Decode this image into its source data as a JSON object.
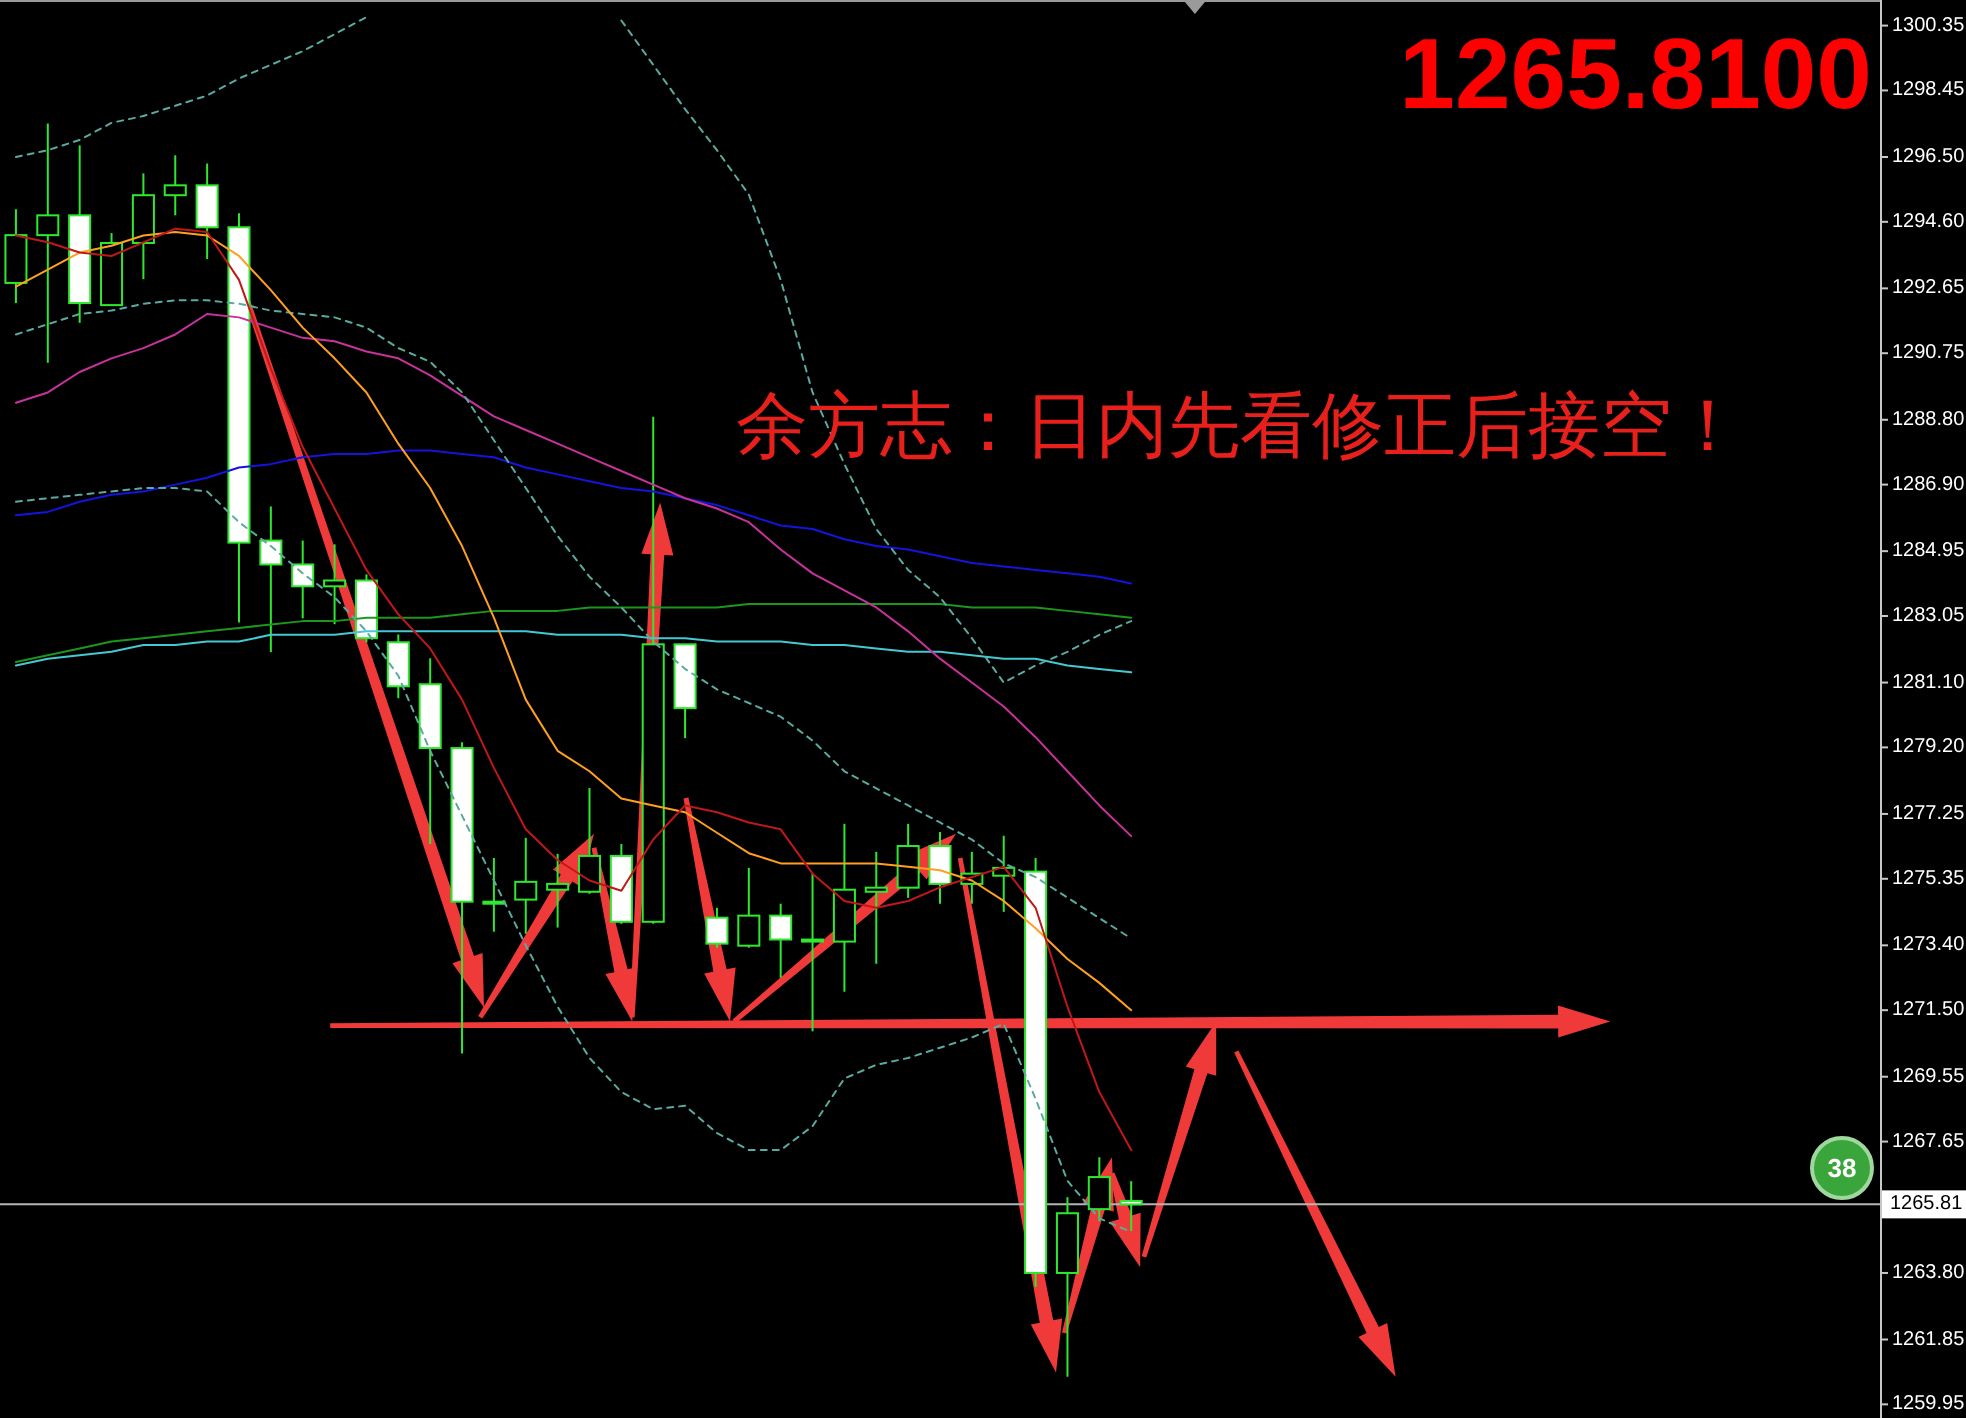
{
  "chart_data": {
    "type": "candlestick",
    "categories": [
      null,
      null,
      null,
      null,
      null,
      null,
      null,
      null,
      null,
      null,
      null,
      null,
      null,
      null,
      null,
      null,
      null,
      null,
      null,
      null,
      null,
      null,
      null,
      null,
      null,
      null,
      null,
      null,
      null,
      null,
      null,
      null,
      null,
      null,
      null,
      null,
      null,
      null,
      null,
      null,
      null,
      null,
      null,
      null,
      null,
      null,
      null,
      null,
      null,
      null,
      null,
      null,
      null,
      null,
      null,
      null,
      null,
      null,
      null
    ],
    "ohlc": [
      [
        1292.81,
        1294.97,
        1292.22,
        1294.21
      ],
      [
        1294.21,
        1297.48,
        1290.47,
        1294.79
      ],
      [
        1294.79,
        1296.84,
        1291.64,
        1292.22
      ],
      [
        1292.16,
        1294.27,
        1292.16,
        1293.98
      ],
      [
        1293.98,
        1296.02,
        1292.92,
        1295.38
      ],
      [
        1295.38,
        1296.55,
        1294.79,
        1295.67
      ],
      [
        1295.67,
        1296.31,
        1293.51,
        1294.44
      ],
      [
        1294.44,
        1294.85,
        1282.86,
        1285.2
      ],
      [
        1285.26,
        1286.26,
        1281.99,
        1284.56
      ],
      [
        1284.56,
        1285.26,
        1282.98,
        1283.92
      ],
      [
        1283.92,
        1285.15,
        1282.81,
        1284.09
      ],
      [
        1284.09,
        1284.27,
        1282.28,
        1282.4
      ],
      [
        1282.28,
        1282.51,
        1280.64,
        1280.99
      ],
      [
        1281.05,
        1281.81,
        1276.37,
        1279.18
      ],
      [
        1279.18,
        1279.35,
        1270.23,
        1274.68
      ],
      [
        1274.68,
        1275.96,
        1273.8,
        1274.62
      ],
      [
        1274.74,
        1276.55,
        1273.74,
        1275.26
      ],
      [
        1275.03,
        1276.08,
        1273.92,
        1275.2
      ],
      [
        1274.97,
        1278.01,
        1274.91,
        1276.02
      ],
      [
        1276.02,
        1276.37,
        1274.03,
        1274.09
      ],
      [
        1274.09,
        1288.89,
        1274.03,
        1282.22
      ],
      [
        1282.22,
        1282.22,
        1279.47,
        1280.35
      ],
      [
        1274.21,
        1274.5,
        1273.33,
        1273.45
      ],
      [
        1273.39,
        1275.67,
        1273.33,
        1274.27
      ],
      [
        1274.27,
        1274.62,
        1272.45,
        1273.57
      ],
      [
        1273.57,
        1275.5,
        1270.88,
        1273.51
      ],
      [
        1273.51,
        1276.96,
        1272.04,
        1275.03
      ],
      [
        1274.97,
        1276.14,
        1272.86,
        1275.09
      ],
      [
        1275.09,
        1276.96,
        1274.79,
        1276.31
      ],
      [
        1276.31,
        1276.72,
        1274.62,
        1275.2
      ],
      [
        1275.2,
        1276.14,
        1274.62,
        1275.5
      ],
      [
        1275.44,
        1276.61,
        1274.38,
        1275.67
      ],
      [
        1275.56,
        1275.96,
        1263.39,
        1263.8
      ],
      [
        1263.8,
        1266.02,
        1260.76,
        1265.55
      ],
      [
        1265.67,
        1267.19,
        1265.32,
        1266.61
      ],
      [
        1265.91,
        1266.49,
        1265.03,
        1265.81
      ],
      null,
      null,
      null,
      null,
      null,
      null,
      null,
      null,
      null,
      null,
      null,
      null,
      null,
      null,
      null,
      null,
      null,
      null,
      null,
      null,
      null,
      null,
      null
    ],
    "color": "#2ee82e",
    "colors": [
      "#000000",
      "#000000",
      "#ffffff",
      "#000000",
      "#000000",
      "#000000",
      "#ffffff",
      "#ffffff",
      "#ffffff",
      "#ffffff",
      "#000000",
      "#ffffff",
      "#ffffff",
      "#ffffff",
      "#ffffff",
      "#ffffff",
      "#000000",
      "#000000",
      "#000000",
      "#ffffff",
      "#000000",
      "#ffffff",
      "#ffffff",
      "#000000",
      "#ffffff",
      "#ffffff",
      "#000000",
      "#000000",
      "#000000",
      "#ffffff",
      "#000000",
      "#000000",
      "#ffffff",
      "#000000",
      "#000000",
      "#ffffff",
      null,
      null,
      null,
      null,
      null,
      null,
      null,
      null,
      null,
      null,
      null,
      null,
      null,
      null,
      null,
      null,
      null,
      null,
      null,
      null,
      null,
      null,
      null
    ],
    "series": [
      {
        "type": "line",
        "color": "#46c8d2",
        "values": [
          1281.6,
          1281.8,
          1281.9,
          1282.0,
          1282.2,
          1282.2,
          1282.3,
          1282.3,
          1282.5,
          1282.5,
          1282.5,
          1282.6,
          1282.6,
          1282.6,
          1282.6,
          1282.6,
          1282.6,
          1282.5,
          1282.5,
          1282.5,
          1282.4,
          1282.4,
          1282.3,
          1282.3,
          1282.3,
          1282.2,
          1282.2,
          1282.1,
          1282.0,
          1282.0,
          1281.9,
          1281.8,
          1281.8,
          1281.6,
          1281.5,
          1281.4,
          null,
          null,
          null,
          null,
          null,
          null,
          null,
          null,
          null,
          null,
          null,
          null,
          null,
          null,
          null,
          null,
          null,
          null,
          null,
          null,
          null,
          null,
          null
        ]
      },
      {
        "type": "line",
        "color": "#1e961e",
        "values": [
          1281.7,
          1281.9,
          1282.1,
          1282.3,
          1282.4,
          1282.5,
          1282.6,
          1282.7,
          1282.8,
          1282.9,
          1282.9,
          1283.0,
          1283.0,
          1283.0,
          1283.1,
          1283.2,
          1283.2,
          1283.2,
          1283.3,
          1283.3,
          1283.3,
          1283.3,
          1283.3,
          1283.4,
          1283.4,
          1283.4,
          1283.4,
          1283.4,
          1283.4,
          1283.4,
          1283.3,
          1283.3,
          1283.3,
          1283.2,
          1283.1,
          1283.0,
          null,
          null,
          null,
          null,
          null,
          null,
          null,
          null,
          null,
          null,
          null,
          null,
          null,
          null,
          null,
          null,
          null,
          null,
          null,
          null,
          null,
          null,
          null
        ]
      },
      {
        "type": "line",
        "color": "#1414dc",
        "values": [
          1286.0,
          1286.1,
          1286.4,
          1286.6,
          1286.7,
          1286.9,
          1287.1,
          1287.4,
          1287.5,
          1287.7,
          1287.8,
          1287.8,
          1287.9,
          1287.9,
          1287.8,
          1287.7,
          1287.4,
          1287.2,
          1287.0,
          1286.8,
          1286.7,
          1286.5,
          1286.3,
          1286.0,
          1285.7,
          1285.6,
          1285.3,
          1285.1,
          1285.0,
          1284.8,
          1284.6,
          1284.5,
          1284.4,
          1284.3,
          1284.2,
          1284.0,
          null,
          null,
          null,
          null,
          null,
          null,
          null,
          null,
          null,
          null,
          null,
          null,
          null,
          null,
          null,
          null,
          null,
          null,
          null,
          null,
          null,
          null,
          null
        ]
      },
      {
        "type": "line",
        "color": "#c8329b",
        "values": [
          1289.3,
          1289.6,
          1290.2,
          1290.6,
          1290.9,
          1291.3,
          1291.9,
          1291.8,
          1291.5,
          1291.2,
          1291.1,
          1290.8,
          1290.6,
          1290.1,
          1289.5,
          1288.9,
          1288.5,
          1288.1,
          1287.7,
          1287.3,
          1286.9,
          1286.5,
          1286.2,
          1285.8,
          1285.0,
          1284.3,
          1283.8,
          1283.3,
          1282.6,
          1281.8,
          1281.1,
          1280.4,
          1279.5,
          1278.5,
          1277.5,
          1276.6,
          null,
          null,
          null,
          null,
          null,
          null,
          null,
          null,
          null,
          null,
          null,
          null,
          null,
          null,
          null,
          null,
          null,
          null,
          null,
          null,
          null,
          null,
          null
        ]
      },
      {
        "type": "line",
        "color": "#5aaaa0",
        "line_style": "dashed",
        "values": [
          1296.5,
          1296.7,
          1297.0,
          1297.5,
          1297.7,
          1298.0,
          1298.3,
          1298.8,
          1299.2,
          1299.6,
          1300.1,
          1300.6,
          null,
          null,
          null,
          null,
          null,
          null,
          null,
          1300.5,
          1299.2,
          1297.9,
          1296.7,
          1295.4,
          1292.9,
          1289.6,
          1287.5,
          1285.6,
          1284.4,
          1283.6,
          1282.4,
          1281.1,
          1281.6,
          1282.0,
          1282.5,
          1282.9,
          null,
          null,
          null,
          null,
          null,
          null,
          null,
          null,
          null,
          null,
          null,
          null,
          null,
          null,
          null,
          null,
          null,
          null,
          null,
          null,
          null,
          null,
          null
        ]
      },
      {
        "type": "line",
        "color": "#5aaaa0",
        "line_style": "dashed",
        "values": [
          1291.3,
          1291.6,
          1291.9,
          1292.0,
          1292.2,
          1292.3,
          1292.3,
          1292.2,
          1292.0,
          1291.9,
          1291.8,
          1291.5,
          1290.9,
          1290.5,
          1289.6,
          1288.2,
          1286.8,
          1285.4,
          1284.2,
          1283.3,
          1282.3,
          1281.5,
          1280.9,
          1280.5,
          1280.1,
          1279.4,
          1278.5,
          1278.0,
          1277.5,
          1277.0,
          1276.5,
          1275.8,
          1275.4,
          1274.8,
          1274.2,
          1273.6,
          null,
          null,
          null,
          null,
          null,
          null,
          null,
          null,
          null,
          null,
          null,
          null,
          null,
          null,
          null,
          null,
          null,
          null,
          null,
          null,
          null,
          null,
          null
        ]
      },
      {
        "type": "line",
        "color": "#5aaaa0",
        "line_style": "dashed",
        "values": [
          1286.4,
          1286.5,
          1286.6,
          1286.7,
          1286.8,
          1286.8,
          1286.7,
          1285.8,
          1285.1,
          1284.3,
          1283.6,
          1282.6,
          1281.3,
          1279.1,
          1277.2,
          1275.3,
          1273.4,
          1271.6,
          1270.1,
          1269.1,
          1268.6,
          1268.7,
          1267.9,
          1267.4,
          1267.4,
          1268.1,
          1269.5,
          1269.9,
          1270.1,
          1270.4,
          1270.7,
          1271.1,
          1268.9,
          1266.5,
          1265.4,
          1265.0,
          null,
          null,
          null,
          null,
          null,
          null,
          null,
          null,
          null,
          null,
          null,
          null,
          null,
          null,
          null,
          null,
          null,
          null,
          null,
          null,
          null,
          null,
          null
        ]
      },
      {
        "type": "line",
        "color": "#ffa020",
        "values": [
          1292.7,
          1293.2,
          1293.7,
          1293.9,
          1294.2,
          1294.3,
          1294.2,
          1293.6,
          1292.6,
          1291.5,
          1290.6,
          1289.6,
          1288.1,
          1286.8,
          1285.1,
          1283.0,
          1280.6,
          1279.1,
          1278.5,
          1277.7,
          1277.5,
          1277.3,
          1276.7,
          1276.1,
          1275.8,
          1275.8,
          1275.8,
          1275.8,
          1275.7,
          1275.6,
          1275.3,
          1274.7,
          1273.9,
          1273.0,
          1272.3,
          1271.5,
          null,
          null,
          null,
          null,
          null,
          null,
          null,
          null,
          null,
          null,
          null,
          null,
          null,
          null,
          null,
          null,
          null,
          null,
          null,
          null,
          null,
          null,
          null
        ]
      },
      {
        "type": "line",
        "color": "#c01818",
        "values": [
          1294.2,
          1294.0,
          1293.7,
          1293.6,
          1294.0,
          1294.4,
          1294.3,
          1292.9,
          1290.3,
          1288.0,
          1286.2,
          1284.4,
          1283.1,
          1282.1,
          1280.6,
          1278.6,
          1276.8,
          1275.9,
          1275.3,
          1275.0,
          1276.5,
          1277.5,
          1277.3,
          1277.0,
          1276.8,
          1275.5,
          1274.7,
          1274.5,
          1274.7,
          1275.1,
          1275.4,
          1275.7,
          1274.5,
          1271.6,
          1269.1,
          1267.4,
          null,
          null,
          null,
          null,
          null,
          null,
          null,
          null,
          null,
          null,
          null,
          null,
          null,
          null,
          null,
          null,
          null,
          null,
          null,
          null,
          null,
          null,
          null
        ]
      }
    ],
    "ylim": [
      1259.55,
      1301.1
    ],
    "yticks": [
      1300.35,
      1298.45,
      {
        "value": 1296.5,
        "label": "1296.50"
      },
      {
        "value": 1294.6,
        "label": "1294.60"
      },
      1292.65,
      1290.75,
      {
        "value": 1288.8,
        "label": "1288.80"
      },
      {
        "value": 1286.9,
        "label": "1286.90"
      },
      1284.95,
      1283.05,
      {
        "value": 1281.1,
        "label": "1281.10"
      },
      {
        "value": 1279.2,
        "label": "1279.20"
      },
      1277.25,
      1275.35,
      {
        "value": 1273.4,
        "label": "1273.40"
      },
      {
        "value": 1271.5,
        "label": "1271.50"
      },
      1269.55,
      1267.65,
      {
        "value": 1263.8,
        "label": "1263.80"
      },
      1261.85,
      1259.95
    ],
    "tick_labels": "y",
    "ref_lines": [
      {
        "axis": "y",
        "value": 1265.81,
        "label": "1265.81",
        "color": "#b4b4b4"
      }
    ],
    "annotations": [
      "余方志：日内先看修正后接空！",
      "1265.8100",
      "38"
    ]
  }
}
